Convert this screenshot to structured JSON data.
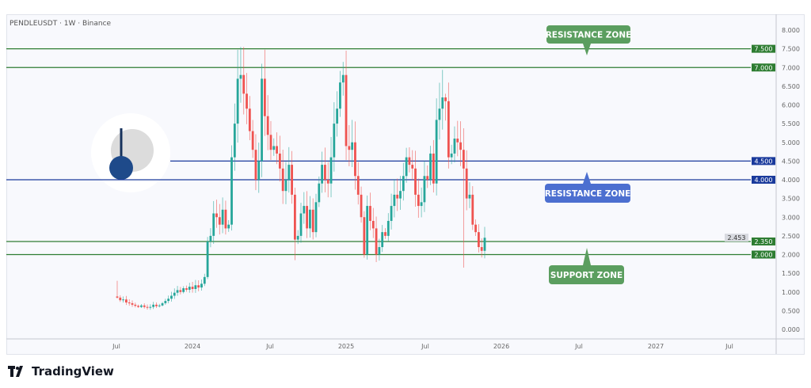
{
  "header": {
    "symbol": "PENDLEUSDT · 1W · Binance"
  },
  "brand": {
    "name": "TradingView"
  },
  "colors": {
    "up": "#26a69a",
    "down": "#ef5350",
    "green_zone": "#2e7d32",
    "blue_zone": "#1a3a9c",
    "label_green": "#5b9e5f",
    "label_blue": "#4c6fd0"
  },
  "chart_data": {
    "type": "candlestick",
    "title": "PENDLEUSDT · 1W · Binance",
    "interval": "1W",
    "x_start": "2023-07",
    "x_end": "2025-11",
    "xlim": [
      "2023-05",
      "2027-10"
    ],
    "ylim": [
      0,
      8.3
    ],
    "y_ticks": [
      "0.000",
      "0.500",
      "1.000",
      "1.500",
      "2.000",
      "2.500",
      "3.000",
      "3.500",
      "4.000",
      "4.500",
      "5.000",
      "5.500",
      "6.000",
      "6.500",
      "7.000",
      "7.500",
      "8.000"
    ],
    "x_ticks": [
      {
        "label": "Jul",
        "date": "2023-07"
      },
      {
        "label": "2024",
        "date": "2024-01"
      },
      {
        "label": "Jul",
        "date": "2024-07"
      },
      {
        "label": "2025",
        "date": "2025-01"
      },
      {
        "label": "Jul",
        "date": "2025-07"
      },
      {
        "label": "2026",
        "date": "2026-01"
      },
      {
        "label": "Jul",
        "date": "2026-07"
      },
      {
        "label": "2027",
        "date": "2027-01"
      },
      {
        "label": "Jul",
        "date": "2027-07"
      }
    ],
    "close": [
      0.85,
      0.78,
      0.8,
      0.72,
      0.7,
      0.66,
      0.63,
      0.6,
      0.64,
      0.6,
      0.58,
      0.6,
      0.66,
      0.62,
      0.64,
      0.7,
      0.76,
      0.82,
      0.9,
      0.98,
      1.05,
      1.0,
      1.1,
      1.06,
      1.14,
      1.08,
      1.18,
      1.12,
      1.22,
      1.4,
      2.35,
      2.5,
      3.1,
      3.0,
      2.8,
      3.2,
      2.7,
      2.8,
      4.6,
      5.5,
      6.7,
      6.8,
      6.3,
      5.9,
      5.3,
      4.8,
      4.0,
      4.5,
      6.7,
      5.7,
      5.2,
      4.8,
      4.9,
      4.7,
      4.3,
      3.7,
      4.0,
      4.4,
      3.6,
      2.4,
      2.5,
      3.1,
      3.3,
      2.7,
      3.2,
      2.6,
      3.4,
      3.9,
      4.4,
      4.0,
      3.9,
      4.6,
      5.5,
      5.9,
      6.6,
      6.8,
      4.9,
      4.8,
      5.0,
      4.1,
      3.6,
      3.0,
      2.0,
      3.3,
      2.9,
      2.7,
      2.0,
      2.2,
      2.6,
      2.5,
      2.9,
      3.3,
      3.6,
      3.5,
      3.7,
      4.1,
      4.6,
      4.4,
      4.3,
      3.6,
      3.3,
      3.4,
      4.1,
      4.0,
      4.7,
      3.9,
      5.6,
      5.9,
      6.2,
      6.1,
      4.6,
      4.7,
      5.1,
      5.0,
      4.8,
      4.3,
      3.5,
      3.6,
      2.8,
      2.6,
      2.2,
      2.1,
      2.45
    ],
    "wick_extremes": [
      {
        "index": 0,
        "high": 1.3
      },
      {
        "index": 41,
        "high": 7.55
      },
      {
        "index": 48,
        "high": 7.1
      },
      {
        "index": 59,
        "low": 1.85
      },
      {
        "index": 75,
        "high": 7.15
      },
      {
        "index": 86,
        "low": 1.8
      },
      {
        "index": 109,
        "high": 6.3
      },
      {
        "index": 115,
        "low": 1.65
      }
    ],
    "levels": [
      {
        "value": 7.5,
        "label": "7.500",
        "color": "#2e7d32"
      },
      {
        "value": 7.0,
        "label": "7.000",
        "color": "#2e7d32"
      },
      {
        "value": 4.5,
        "label": "4.500",
        "color": "#1a3a9c"
      },
      {
        "value": 4.0,
        "label": "4.000",
        "color": "#1a3a9c"
      },
      {
        "value": 2.35,
        "label": "2.350",
        "color": "#2e7d32"
      },
      {
        "value": 2.0,
        "label": "2.000",
        "color": "#2e7d32"
      }
    ],
    "last_price": {
      "value": 2.453,
      "label": "2.453"
    },
    "annotations": [
      {
        "text": "RESISTANCE ZONE",
        "color": "#5b9e5f",
        "arrow": "down"
      },
      {
        "text": "RESISTANCE ZONE",
        "color": "#4c6fd0",
        "arrow": "up"
      },
      {
        "text": "SUPPORT ZONE",
        "color": "#5b9e5f",
        "arrow": "up"
      }
    ]
  }
}
